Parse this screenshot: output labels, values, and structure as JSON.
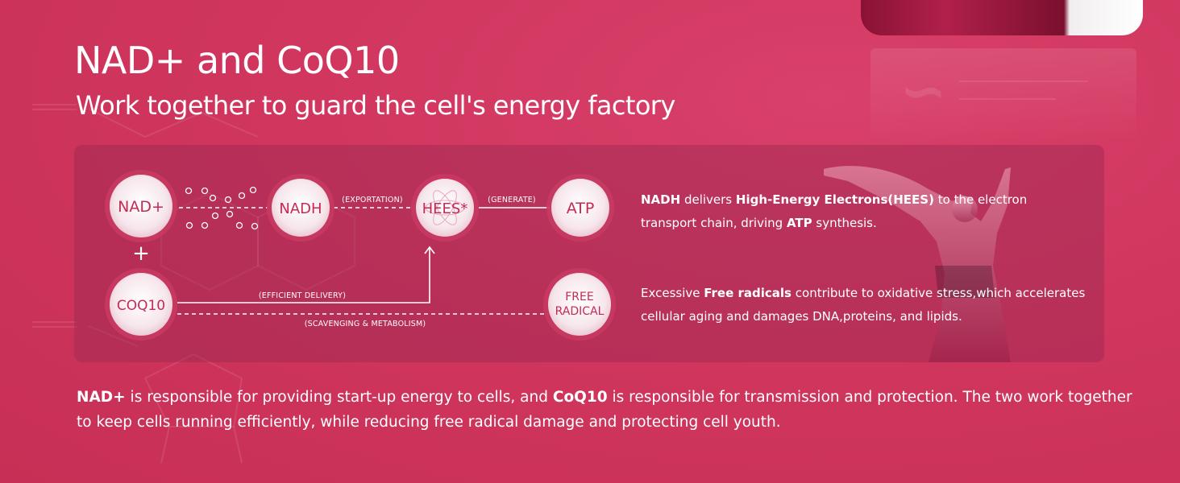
{
  "header": {
    "title": "NAD+ and CoQ10",
    "subtitle": "Work together to guard the cell's energy factory"
  },
  "diagram": {
    "nodes": {
      "nad": "NAD+",
      "coq10": "COQ10",
      "nadh": "NADH",
      "hees": "HEES*",
      "atp": "ATP",
      "free_radical_line1": "FREE",
      "free_radical_line2": "RADICAL"
    },
    "plus": "+",
    "labels": {
      "exportation": "(EXPORTATION)",
      "generate": "(GENERATE)",
      "efficient_delivery": "(EFFICIENT DELIVERY)",
      "scavenging": "(SCAVENGING & METABOLISM)"
    },
    "descriptions": {
      "nadh": {
        "b1": "NADH",
        "t1": " delivers ",
        "b2": "High-Energy Electrons(HEES)",
        "t2": " to the electron transport chain, driving ",
        "b3": "ATP",
        "t3": " synthesis."
      },
      "free_radical": {
        "t1": "Excessive ",
        "b1": "Free radicals",
        "t2": " contribute to oxidative stress,which accelerates cellular aging and damages DNA,proteins, and lipids."
      }
    }
  },
  "footer": {
    "b1": "NAD+",
    "t1": " is responsible for providing start-up energy to cells, and ",
    "b2": "CoQ10",
    "t2": " is responsible for transmission and protection. The two work together to keep cells running efficiently, while reducing free radical damage and protecting cell youth."
  },
  "colors": {
    "background": "#d0365e",
    "panel": "#962850",
    "node_fill": "#f7e8ee",
    "node_text": "#c52a55"
  }
}
